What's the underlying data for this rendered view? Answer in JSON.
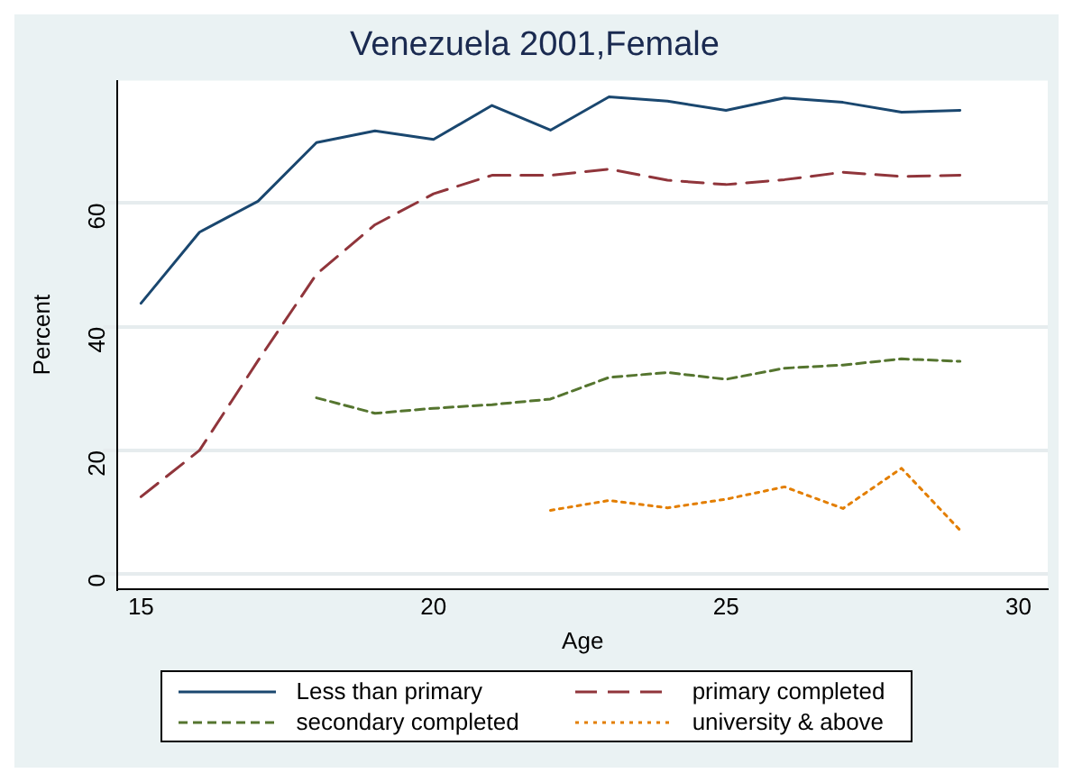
{
  "chart_data": {
    "type": "line",
    "title": "Venezuela 2001,Female",
    "xlabel": "Age",
    "ylabel": "Percent",
    "x": [
      15,
      16,
      17,
      18,
      19,
      20,
      21,
      22,
      23,
      24,
      25,
      26,
      27,
      28,
      29
    ],
    "series": [
      {
        "name": "Less than primary",
        "color": "#1a476f",
        "line_style": "solid",
        "values": [
          43.8,
          55.3,
          60.3,
          69.8,
          71.7,
          70.3,
          75.8,
          71.8,
          77.2,
          76.5,
          75,
          77,
          76.3,
          74.7,
          75
        ]
      },
      {
        "name": "primary completed",
        "color": "#90353b",
        "line_style": "dashed",
        "values": [
          12.5,
          20,
          34.5,
          48.5,
          56.5,
          61.5,
          64.5,
          64.5,
          65.5,
          63.7,
          63,
          63.8,
          65,
          64.3,
          64.5
        ]
      },
      {
        "name": "secondary completed",
        "color": "#55752f",
        "line_style": "dashed",
        "values": [
          null,
          null,
          null,
          28.5,
          26,
          26.8,
          27.4,
          28.3,
          31.8,
          32.6,
          31.5,
          33.3,
          33.8,
          34.8,
          34.4
        ]
      },
      {
        "name": "university & above",
        "color": "#e37e00",
        "line_style": "dotted",
        "values": [
          null,
          null,
          null,
          null,
          null,
          null,
          null,
          10.3,
          11.9,
          10.7,
          12.1,
          14.1,
          10.6,
          17.1,
          7.1
        ]
      }
    ],
    "xlim": [
      14.6,
      30.5
    ],
    "xticks": [
      15,
      20,
      25,
      30
    ],
    "ylim": [
      -2.4,
      79.8
    ],
    "yticks": [
      0,
      20,
      40,
      60
    ],
    "grid": "y",
    "legend": "bottom",
    "marker": "none"
  }
}
